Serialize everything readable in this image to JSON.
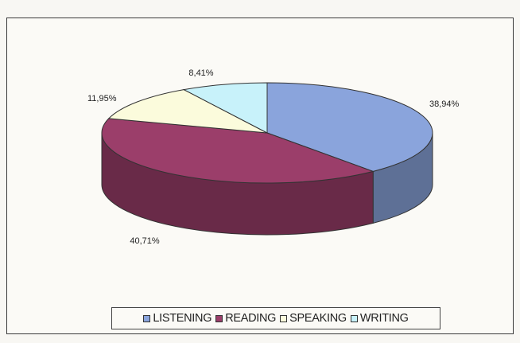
{
  "chart_data": {
    "type": "pie",
    "variant": "3d",
    "labels": [
      "LISTENING",
      "READING",
      "SPEAKING",
      "WRITING"
    ],
    "values": [
      38.94,
      40.71,
      11.95,
      8.41
    ],
    "value_labels": [
      "38,94%",
      "40,71%",
      "11,95%",
      "8,41%"
    ],
    "colors": [
      "#8aa4dc",
      "#9b3e6a",
      "#fbfbdc",
      "#c8f2fa"
    ],
    "legend_position": "bottom",
    "title": ""
  }
}
